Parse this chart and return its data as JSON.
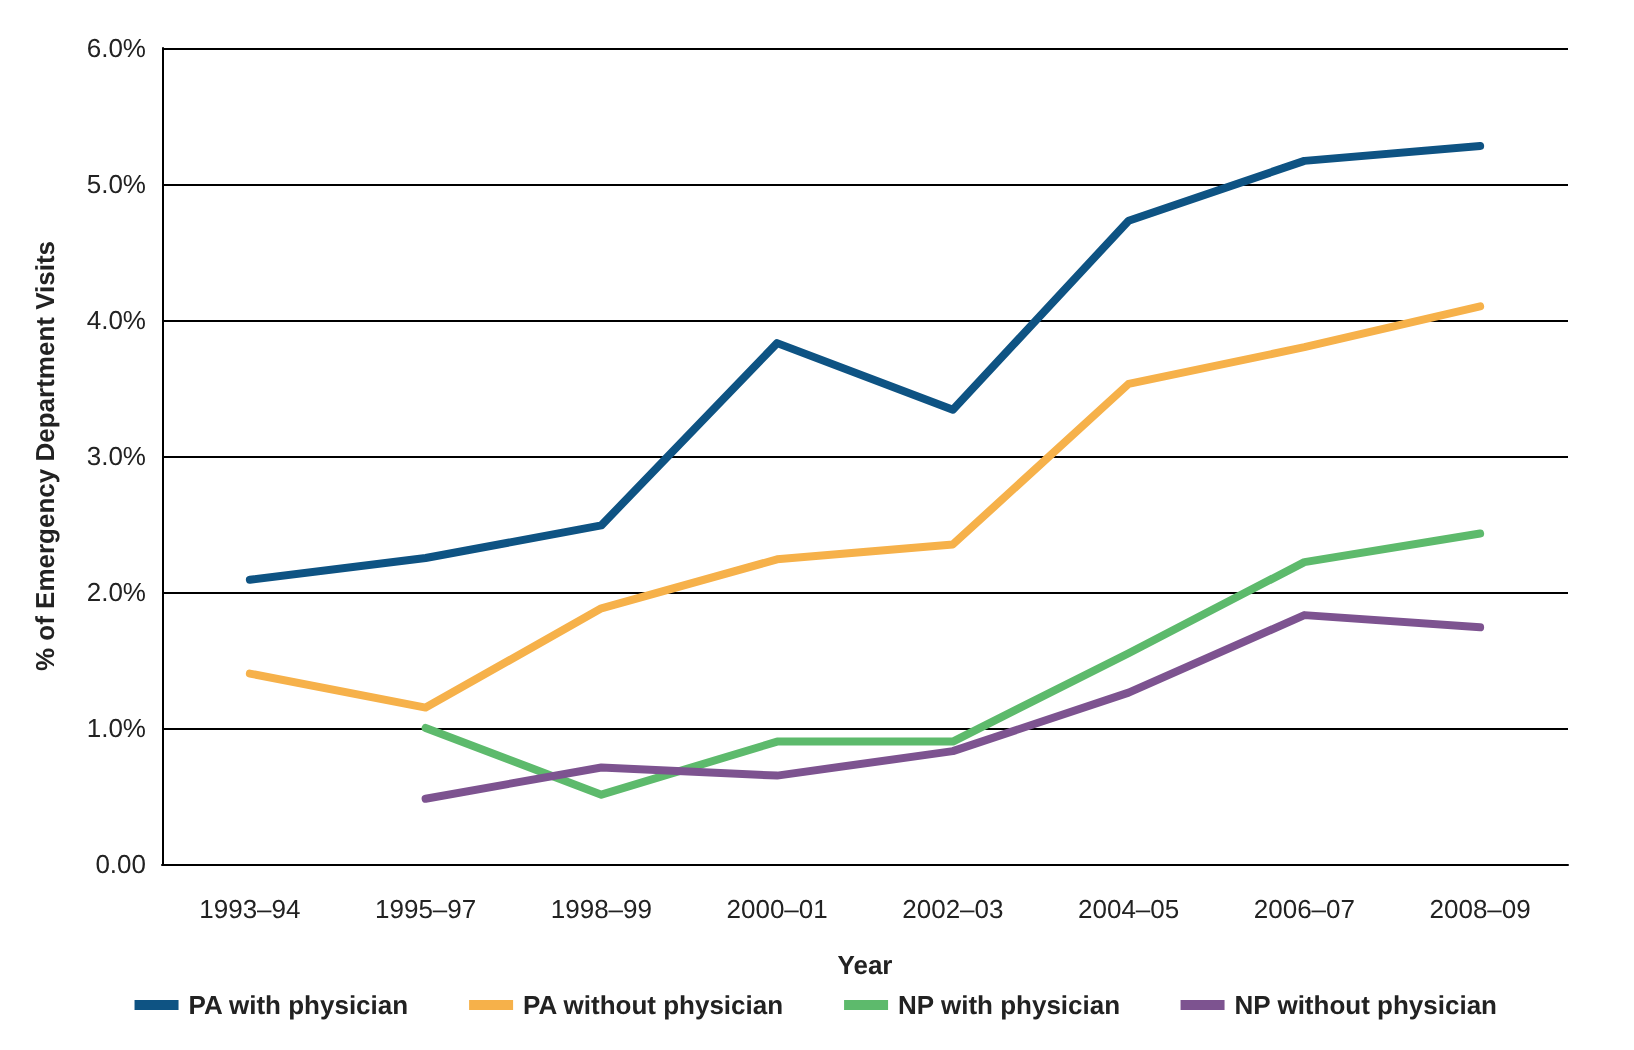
{
  "chart_data": {
    "type": "line",
    "xlabel": "Year",
    "ylabel": "% of Emergency Department Visits",
    "categories": [
      "1993–94",
      "1995–97",
      "1998–99",
      "2000–01",
      "2002–03",
      "2004–05",
      "2006–07",
      "2008–09"
    ],
    "series": [
      {
        "name": "PA with physician",
        "color": "#0e5383",
        "values": [
          2.09,
          2.25,
          2.49,
          3.83,
          3.34,
          4.73,
          5.17,
          5.28
        ]
      },
      {
        "name": "PA without physician",
        "color": "#f6b14a",
        "values": [
          1.4,
          1.15,
          1.88,
          2.24,
          2.35,
          3.53,
          3.8,
          4.1
        ]
      },
      {
        "name": "NP with physician",
        "color": "#5dba6c",
        "values": [
          null,
          1.0,
          0.51,
          0.9,
          0.9,
          1.55,
          2.22,
          2.43
        ]
      },
      {
        "name": "NP without physician",
        "color": "#7d5390",
        "values": [
          null,
          0.48,
          0.71,
          0.65,
          0.83,
          1.26,
          1.83,
          1.74
        ]
      }
    ],
    "ylim": [
      0,
      6
    ],
    "yticks": [
      {
        "value": 0,
        "label": "0.00"
      },
      {
        "value": 1,
        "label": "1.0%"
      },
      {
        "value": 2,
        "label": "2.0%"
      },
      {
        "value": 3,
        "label": "3.0%"
      },
      {
        "value": 4,
        "label": "4.0%"
      },
      {
        "value": 5,
        "label": "5.0%"
      },
      {
        "value": 6,
        "label": "6.0%"
      }
    ],
    "grid": "y",
    "legend": "bottom",
    "marker": "none",
    "line_style": "solid"
  }
}
